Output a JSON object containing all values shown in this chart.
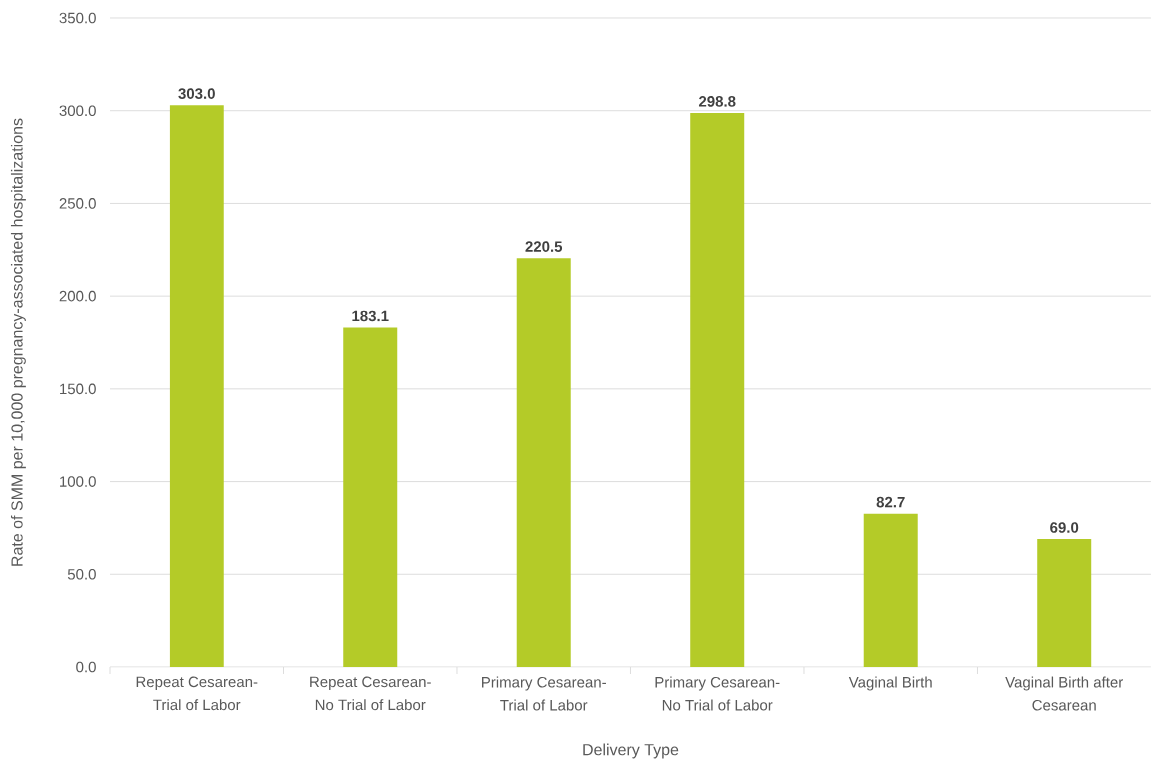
{
  "chart_data": {
    "type": "bar",
    "xlabel": "Delivery Type",
    "ylabel": "Rate of SMM per 10,000 pregnancy-associated hospitalizations",
    "categories": [
      "Repeat Cesarean-Trial of Labor",
      "Repeat Cesarean-No Trial of Labor",
      "Primary Cesarean-Trial of Labor",
      "Primary Cesarean-No Trial of Labor",
      "Vaginal Birth",
      "Vaginal Birth after Cesarean"
    ],
    "values": [
      303.0,
      183.1,
      220.5,
      298.8,
      82.7,
      69.0
    ],
    "color": "#b4cb28",
    "value_labels": [
      "303.0",
      "183.1",
      "220.5",
      "298.8",
      "82.7",
      "69.0"
    ],
    "ylim": [
      0,
      350
    ],
    "yticks": [
      {
        "value": 0,
        "label": "0.0"
      },
      {
        "value": 50,
        "label": "50.0"
      },
      {
        "value": 100,
        "label": "100.0"
      },
      {
        "value": 150,
        "label": "150.0"
      },
      {
        "value": 200,
        "label": "200.0"
      },
      {
        "value": 250,
        "label": "250.0"
      },
      {
        "value": 300,
        "label": "300.0"
      },
      {
        "value": 350,
        "label": "350.0"
      }
    ],
    "grid": "y"
  }
}
